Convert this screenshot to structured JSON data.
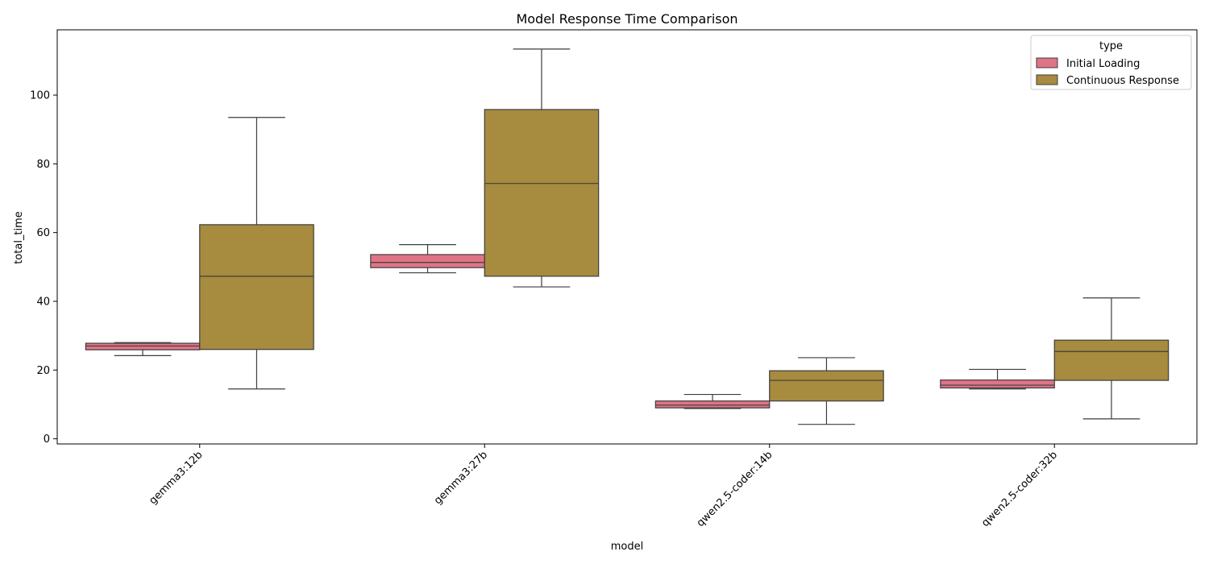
{
  "chart_data": {
    "type": "box",
    "title": "Model Response Time Comparison",
    "xlabel": "model",
    "ylabel": "total_time",
    "ylim": [
      -1.5,
      119
    ],
    "yticks": [
      0,
      20,
      40,
      60,
      80,
      100
    ],
    "grid": false,
    "categories": [
      "gemma3:12b",
      "gemma3:27b",
      "qwen2.5-coder:14b",
      "qwen2.5-coder:32b"
    ],
    "legend": {
      "title": "type",
      "position": "top-right"
    },
    "series": [
      {
        "name": "Initial Loading",
        "color": "#e07487",
        "boxes": [
          {
            "whislo": 24.2,
            "q1": 25.9,
            "med": 27.0,
            "q3": 27.8,
            "whishi": 28.0
          },
          {
            "whislo": 48.3,
            "q1": 49.8,
            "med": 51.3,
            "q3": 53.6,
            "whishi": 56.5
          },
          {
            "whislo": 8.8,
            "q1": 9.0,
            "med": 9.8,
            "q3": 11.0,
            "whishi": 12.9
          },
          {
            "whislo": 14.5,
            "q1": 14.8,
            "med": 15.6,
            "q3": 17.1,
            "whishi": 20.2
          }
        ]
      },
      {
        "name": "Continuous Response",
        "color": "#a78b3e",
        "boxes": [
          {
            "whislo": 14.5,
            "q1": 26.0,
            "med": 47.3,
            "q3": 62.3,
            "whishi": 93.5
          },
          {
            "whislo": 44.2,
            "q1": 47.3,
            "med": 74.3,
            "q3": 95.8,
            "whishi": 113.4
          },
          {
            "whislo": 4.2,
            "q1": 11.0,
            "med": 17.0,
            "q3": 19.8,
            "whishi": 23.6
          },
          {
            "whislo": 5.8,
            "q1": 17.0,
            "med": 25.4,
            "q3": 28.7,
            "whishi": 41.0
          }
        ]
      }
    ]
  }
}
